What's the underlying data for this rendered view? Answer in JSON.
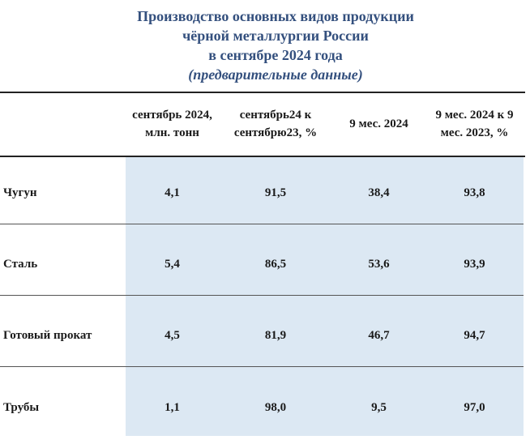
{
  "header": {
    "title": [
      "Производство основных видов продукции",
      "чёрной металлургии России",
      "в сентябре 2024 года"
    ],
    "subtitle": "(предварительные данные)"
  },
  "table": {
    "columns": [
      "сентябрь 2024, млн. тонн",
      "сентябрь24 к сентябрю23, %",
      "9 мес. 2024",
      "9 мес. 2024 к 9 мес. 2023, %"
    ],
    "rows": [
      [
        "Чугун",
        "4,1",
        "91,5",
        "38,4",
        "93,8"
      ],
      [
        "Сталь",
        "5,4",
        "86,5",
        "53,6",
        "93,9"
      ],
      [
        "Готовый прокат",
        "4,5",
        "81,9",
        "46,7",
        "94,7"
      ],
      [
        "Трубы",
        "1,1",
        "98,0",
        "9,5",
        "97,0"
      ]
    ]
  }
}
